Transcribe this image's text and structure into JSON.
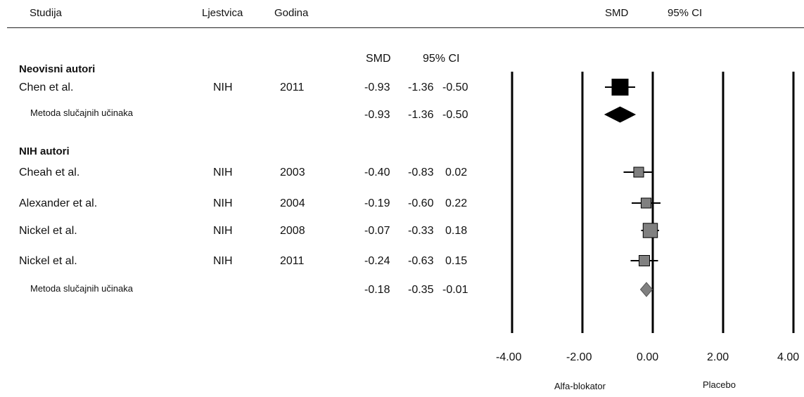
{
  "header": {
    "study": "Studija",
    "scale": "Ljestvica",
    "year": "Godina",
    "smd": "SMD",
    "ci": "95% CI"
  },
  "table_header": {
    "smd": "SMD",
    "ci": "95% CI"
  },
  "groups": [
    {
      "title": "Neovisni autori",
      "studies": [
        {
          "name": "Chen et al.",
          "scale": "NIH",
          "year": "2011",
          "smd": "-0.93",
          "lo": "-1.36",
          "hi": "-0.50"
        }
      ],
      "pooled": {
        "label": "Metoda slučajnih učinaka",
        "smd": "-0.93",
        "lo": "-1.36",
        "hi": "-0.50"
      }
    },
    {
      "title": "NIH autori",
      "studies": [
        {
          "name": "Cheah et al.",
          "scale": "NIH",
          "year": "2003",
          "smd": "-0.40",
          "lo": "-0.83",
          "hi": "0.02"
        },
        {
          "name": "Alexander et al.",
          "scale": "NIH",
          "year": "2004",
          "smd": "-0.19",
          "lo": "-0.60",
          "hi": "0.22"
        },
        {
          "name": "Nickel et al.",
          "scale": "NIH",
          "year": "2008",
          "smd": "-0.07",
          "lo": "-0.33",
          "hi": "0.18"
        },
        {
          "name": "Nickel et al.",
          "scale": "NIH",
          "year": "2011",
          "smd": "-0.24",
          "lo": "-0.63",
          "hi": "0.15"
        }
      ],
      "pooled": {
        "label": "Metoda slučajnih učinaka",
        "smd": "-0.18",
        "lo": "-0.35",
        "hi": "-0.01"
      }
    }
  ],
  "chart_data": {
    "type": "forest",
    "title": "",
    "xlim": [
      -4,
      4
    ],
    "ticks": [
      "-4.00",
      "-2.00",
      "0.00",
      "2.00",
      "4.00"
    ],
    "tick_values": [
      -4,
      -2,
      0,
      2,
      4
    ],
    "left_label": "Alfa-blokator",
    "right_label": "Placebo",
    "colors": {
      "group1": "#000000",
      "group2": "#808080"
    },
    "estimates": [
      {
        "study": "Chen et al.",
        "year": "2011",
        "smd": -0.93,
        "lo": -1.36,
        "hi": -0.5,
        "kind": "study",
        "group": 1,
        "weight": 1.0
      },
      {
        "study": "Metoda slučajnih učinaka",
        "smd": -0.93,
        "lo": -1.36,
        "hi": -0.5,
        "kind": "pooled",
        "group": 1
      },
      {
        "study": "Cheah et al.",
        "year": "2003",
        "smd": -0.4,
        "lo": -0.83,
        "hi": 0.02,
        "kind": "study",
        "group": 2,
        "weight": 0.45
      },
      {
        "study": "Alexander et al.",
        "year": "2004",
        "smd": -0.19,
        "lo": -0.6,
        "hi": 0.22,
        "kind": "study",
        "group": 2,
        "weight": 0.45
      },
      {
        "study": "Nickel et al.",
        "year": "2008",
        "smd": -0.07,
        "lo": -0.33,
        "hi": 0.18,
        "kind": "study",
        "group": 2,
        "weight": 0.8
      },
      {
        "study": "Nickel et al.",
        "year": "2011",
        "smd": -0.24,
        "lo": -0.63,
        "hi": 0.15,
        "kind": "study",
        "group": 2,
        "weight": 0.5
      },
      {
        "study": "Metoda slučajnih učinaka",
        "smd": -0.18,
        "lo": -0.35,
        "hi": -0.01,
        "kind": "pooled",
        "group": 2
      }
    ]
  }
}
